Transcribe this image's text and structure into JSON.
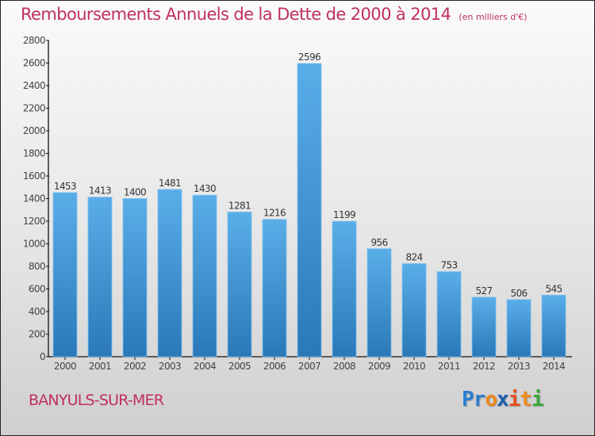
{
  "header": {
    "title": "Remboursements Annuels de la Dette de 2000 à 2014",
    "subtitle": "(en milliers d'€)"
  },
  "footer": {
    "city": "BANYULS-SUR-MER",
    "logo_letters": [
      {
        "char": "P",
        "color": "#2a7fd0"
      },
      {
        "char": "r",
        "color": "#2a7fd0"
      },
      {
        "char": "o",
        "color": "#f08a1c"
      },
      {
        "char": "x",
        "color": "#1a5fb0"
      },
      {
        "char": "i",
        "color": "#e8501e"
      },
      {
        "char": "t",
        "color": "#f08a1c"
      },
      {
        "char": "i",
        "color": "#3aa83a"
      }
    ]
  },
  "colors": {
    "bar_top": "#5aaee8",
    "bar_bottom": "#2a78b8",
    "title": "#c0305e"
  },
  "chart_data": {
    "type": "bar",
    "title": "Remboursements Annuels de la Dette de 2000 à 2014 (en milliers d'€)",
    "xlabel": "",
    "ylabel": "",
    "categories": [
      "2000",
      "2001",
      "2002",
      "2003",
      "2004",
      "2005",
      "2006",
      "2007",
      "2008",
      "2009",
      "2010",
      "2011",
      "2012",
      "2013",
      "2014"
    ],
    "values": [
      1453,
      1413,
      1400,
      1481,
      1430,
      1281,
      1216,
      2596,
      1199,
      956,
      824,
      753,
      527,
      506,
      545
    ],
    "ylim": [
      0,
      2800
    ],
    "yticks": [
      0,
      200,
      400,
      600,
      800,
      1000,
      1200,
      1400,
      1600,
      1800,
      2000,
      2200,
      2400,
      2600,
      2800
    ],
    "grid": false,
    "legend": "none",
    "data_labels": true
  }
}
